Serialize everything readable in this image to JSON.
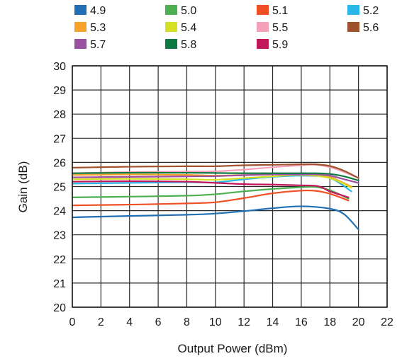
{
  "chart_data": {
    "type": "line",
    "title": "",
    "xlabel": "Output Power (dBm)",
    "ylabel": "Gain (dB)",
    "xlim": [
      0,
      22
    ],
    "ylim": [
      20,
      30
    ],
    "xticks": [
      0,
      2,
      4,
      6,
      8,
      10,
      12,
      14,
      16,
      18,
      20,
      22
    ],
    "yticks": [
      20,
      21,
      22,
      23,
      24,
      25,
      26,
      27,
      28,
      29,
      30
    ],
    "grid": true,
    "legend_position": "top",
    "series": [
      {
        "name": "4.9",
        "color": "#1f6fb5",
        "x": [
          0,
          1,
          4,
          8,
          10,
          12,
          14,
          16,
          18,
          19,
          20
        ],
        "y": [
          23.72,
          23.74,
          23.78,
          23.83,
          23.88,
          23.98,
          24.1,
          24.18,
          24.08,
          23.85,
          23.22
        ]
      },
      {
        "name": "5.0",
        "color": "#4caf50",
        "x": [
          0,
          4,
          8,
          10,
          12,
          14,
          16,
          17,
          18,
          19.3
        ],
        "y": [
          24.55,
          24.58,
          24.62,
          24.68,
          24.8,
          24.9,
          24.97,
          24.98,
          24.85,
          24.5
        ]
      },
      {
        "name": "5.1",
        "color": "#f04e23",
        "x": [
          0,
          4,
          8,
          10,
          12,
          14,
          16,
          17,
          18,
          19.3
        ],
        "y": [
          24.22,
          24.25,
          24.3,
          24.35,
          24.52,
          24.72,
          24.83,
          24.82,
          24.7,
          24.42
        ]
      },
      {
        "name": "5.2",
        "color": "#29b6e8",
        "x": [
          0,
          4,
          8,
          10,
          12,
          14,
          16,
          18,
          19.5
        ],
        "y": [
          25.12,
          25.15,
          25.18,
          25.17,
          25.3,
          25.4,
          25.45,
          25.35,
          24.8
        ]
      },
      {
        "name": "5.3",
        "color": "#f7a12a",
        "x": [
          0,
          4,
          8,
          10,
          12,
          14,
          16,
          17,
          18,
          19.5
        ],
        "y": [
          25.48,
          25.5,
          25.48,
          25.45,
          25.48,
          25.5,
          25.5,
          25.52,
          25.4,
          25.0
        ]
      },
      {
        "name": "5.4",
        "color": "#d7df23",
        "x": [
          0,
          4,
          8,
          10,
          12,
          14,
          16,
          18,
          19.5
        ],
        "y": [
          25.3,
          25.32,
          25.3,
          25.28,
          25.35,
          25.42,
          25.48,
          25.35,
          24.95
        ]
      },
      {
        "name": "5.5",
        "color": "#f4a0b8",
        "x": [
          0,
          4,
          8,
          10,
          12,
          14,
          16,
          17,
          18,
          19,
          20
        ],
        "y": [
          25.55,
          25.6,
          25.62,
          25.63,
          25.7,
          25.8,
          25.88,
          25.9,
          25.8,
          25.6,
          25.35
        ]
      },
      {
        "name": "5.6",
        "color": "#a0522d",
        "x": [
          0,
          4,
          8,
          10,
          12,
          14,
          16,
          17,
          18,
          19,
          20
        ],
        "y": [
          25.78,
          25.82,
          25.84,
          25.84,
          25.88,
          25.9,
          25.92,
          25.92,
          25.85,
          25.65,
          25.35
        ]
      },
      {
        "name": "5.7",
        "color": "#9c4fa3",
        "x": [
          0,
          4,
          8,
          10,
          12,
          14,
          16,
          17,
          18,
          19,
          20
        ],
        "y": [
          25.38,
          25.4,
          25.42,
          25.43,
          25.47,
          25.5,
          25.5,
          25.5,
          25.45,
          25.3,
          25.15
        ]
      },
      {
        "name": "5.8",
        "color": "#0d7a42",
        "x": [
          0,
          4,
          8,
          10,
          12,
          14,
          16,
          17,
          18,
          19,
          20
        ],
        "y": [
          25.55,
          25.57,
          25.57,
          25.56,
          25.55,
          25.55,
          25.55,
          25.55,
          25.52,
          25.42,
          25.25
        ]
      },
      {
        "name": "5.9",
        "color": "#c2185b",
        "x": [
          0,
          4,
          8,
          10,
          12,
          14,
          16,
          17,
          17.5,
          18,
          19.3
        ],
        "y": [
          25.2,
          25.22,
          25.2,
          25.15,
          25.1,
          25.08,
          25.05,
          25.03,
          24.95,
          24.8,
          24.55
        ]
      }
    ]
  }
}
